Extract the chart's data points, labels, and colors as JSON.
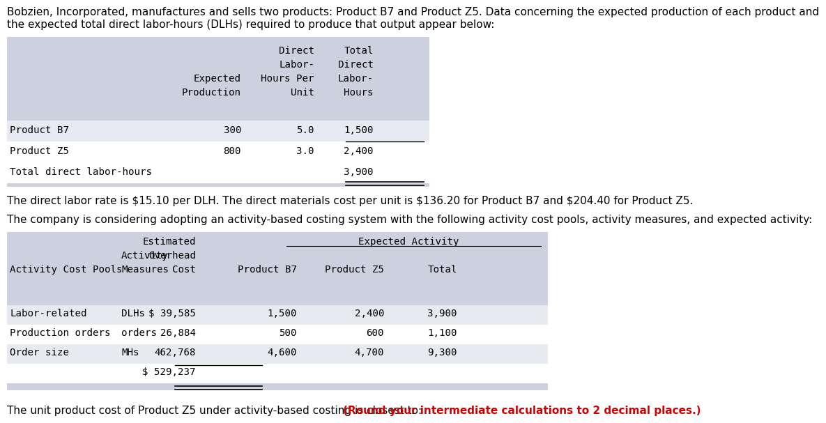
{
  "intro_line1": "Bobzien, Incorporated, manufactures and sells two products: Product B7 and Product Z5. Data concerning the expected production of each product and",
  "intro_line2": "the expected total direct labor-hours (DLHs) required to produce that output appear below:",
  "t1_header": [
    [
      "",
      "",
      "Direct",
      "Total"
    ],
    [
      "",
      "",
      "Labor-",
      "Direct"
    ],
    [
      "",
      "Expected",
      "Hours Per",
      "Labor-"
    ],
    [
      "",
      "Production",
      "Unit",
      "Hours"
    ]
  ],
  "t1_rows": [
    [
      "Product B7",
      "300",
      "5.0",
      "1,500"
    ],
    [
      "Product Z5",
      "800",
      "3.0",
      "2,400"
    ],
    [
      "Total direct labor-hours",
      "",
      "",
      "3,900"
    ]
  ],
  "mid1": "The direct labor rate is $15.10 per DLH. The direct materials cost per unit is $136.20 for Product B7 and $204.40 for Product Z5.",
  "mid2": "The company is considering adopting an activity-based costing system with the following activity cost pools, activity measures, and expected activity:",
  "t2_header": [
    [
      "",
      "",
      "Estimated",
      "Expected Activity",
      "",
      ""
    ],
    [
      "",
      "Activity",
      "Overhead",
      "",
      "",
      ""
    ],
    [
      "Activity Cost Pools",
      "Measures",
      "Cost",
      "Product B7",
      "Product Z5",
      "Total"
    ]
  ],
  "t2_rows": [
    [
      "Labor-related",
      "DLHs",
      "$ 39,585",
      "1,500",
      "2,400",
      "3,900"
    ],
    [
      "Production orders",
      "orders",
      "26,884",
      "500",
      "600",
      "1,100"
    ],
    [
      "Order size",
      "MHs",
      "462,768",
      "4,600",
      "4,700",
      "9,300"
    ],
    [
      "",
      "",
      "$ 529,237",
      "",
      "",
      ""
    ]
  ],
  "footer_normal": "The unit product cost of Product Z5 under activity-based costing is closest to: ",
  "footer_bold": "(Round your intermediate calculations to 2 decimal places.)",
  "header_bg": "#cdd0de",
  "row_bg_alt": "#e8eaf2",
  "row_bg_white": "#ffffff",
  "text_color": "#000000",
  "red_color": "#cc0000",
  "fontsize_body": 11.0,
  "fontsize_mono": 10.2
}
